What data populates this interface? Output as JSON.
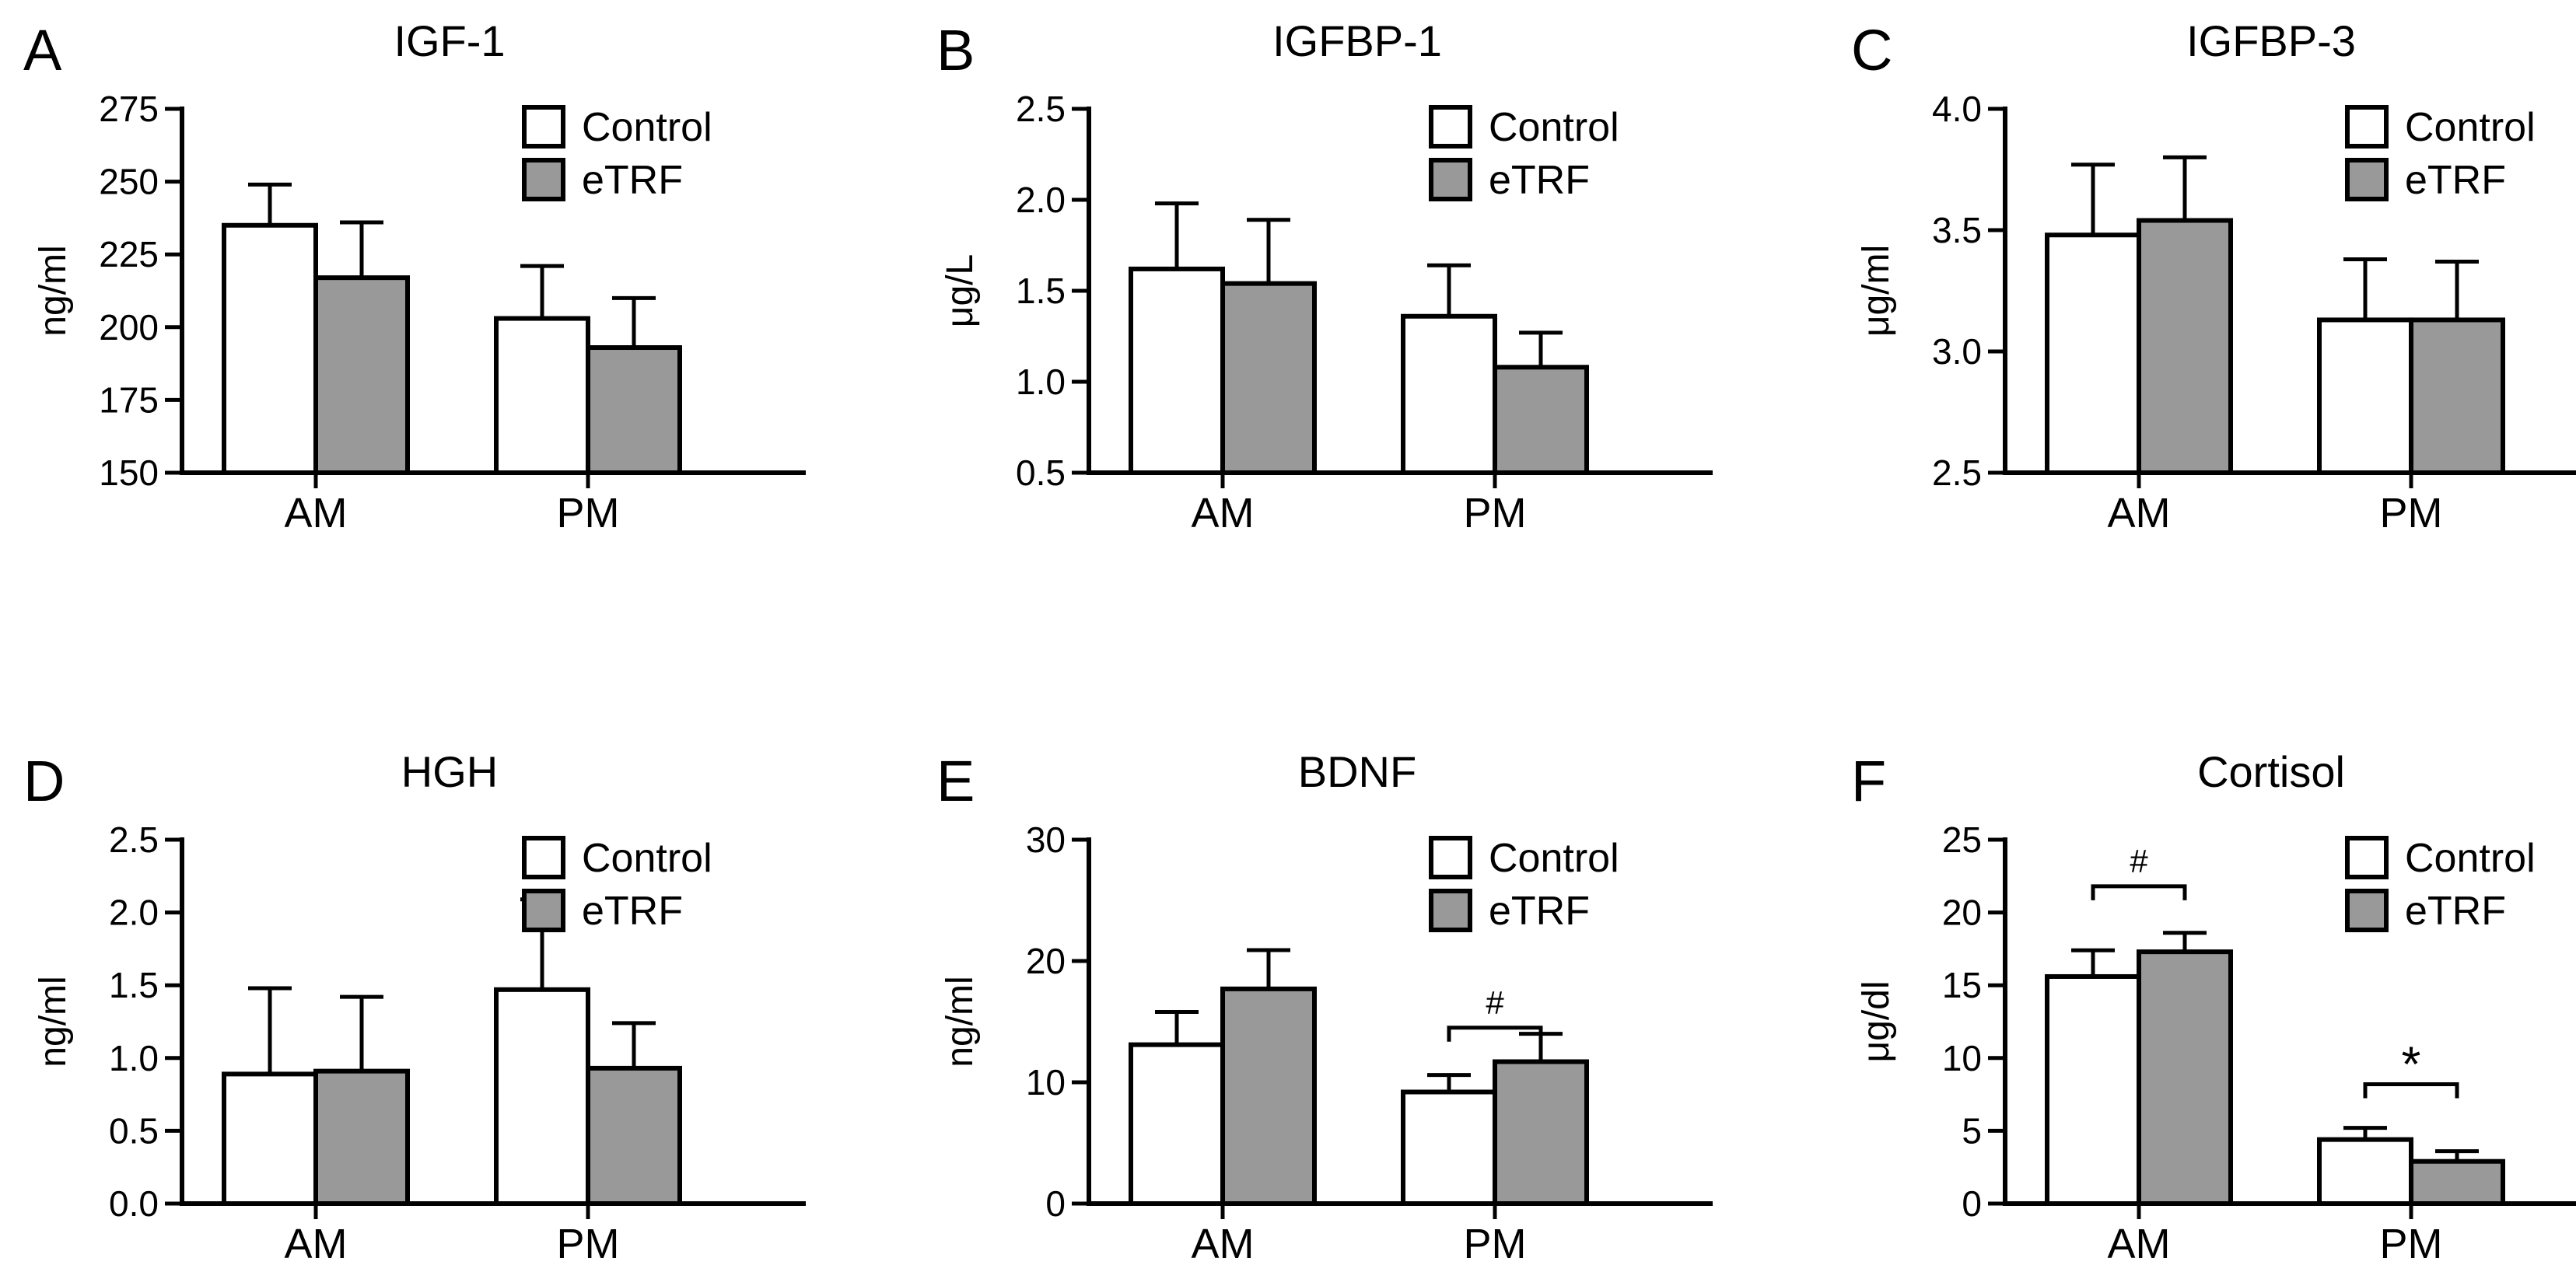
{
  "legend": {
    "control": "Control",
    "etrf": "eTRF"
  },
  "colors": {
    "control": "#ffffff",
    "etrf": "#999999",
    "stroke": "#000000"
  },
  "chart_data": [
    {
      "panel": "A",
      "title": "IGF-1",
      "type": "bar",
      "ylabel": "ng/ml",
      "ylim": [
        150,
        275
      ],
      "yticks": [
        150,
        175,
        200,
        225,
        250,
        275
      ],
      "ytick_labels": [
        "150",
        "175",
        "200",
        "225",
        "250",
        "275"
      ],
      "categories": [
        "AM",
        "PM"
      ],
      "series": [
        {
          "name": "Control",
          "values": [
            235,
            203
          ],
          "errors": [
            14,
            18
          ]
        },
        {
          "name": "eTRF",
          "values": [
            217,
            193
          ],
          "errors": [
            19,
            17
          ]
        }
      ],
      "brackets": []
    },
    {
      "panel": "B",
      "title": "IGFBP-1",
      "type": "bar",
      "ylabel": "μg/L",
      "ylim": [
        0.5,
        2.5
      ],
      "yticks": [
        0.5,
        1.0,
        1.5,
        2.0,
        2.5
      ],
      "ytick_labels": [
        "0.5",
        "1.0",
        "1.5",
        "2.0",
        "2.5"
      ],
      "categories": [
        "AM",
        "PM"
      ],
      "series": [
        {
          "name": "Control",
          "values": [
            1.62,
            1.36
          ],
          "errors": [
            0.36,
            0.28
          ]
        },
        {
          "name": "eTRF",
          "values": [
            1.54,
            1.08
          ],
          "errors": [
            0.35,
            0.19
          ]
        }
      ],
      "brackets": []
    },
    {
      "panel": "C",
      "title": "IGFBP-3",
      "type": "bar",
      "ylabel": "μg/ml",
      "ylim": [
        2.5,
        4.0
      ],
      "yticks": [
        2.5,
        3.0,
        3.5,
        4.0
      ],
      "ytick_labels": [
        "2.5",
        "3.0",
        "3.5",
        "4.0"
      ],
      "categories": [
        "AM",
        "PM"
      ],
      "series": [
        {
          "name": "Control",
          "values": [
            3.48,
            3.13
          ],
          "errors": [
            0.29,
            0.25
          ]
        },
        {
          "name": "eTRF",
          "values": [
            3.54,
            3.13
          ],
          "errors": [
            0.26,
            0.24
          ]
        }
      ],
      "brackets": []
    },
    {
      "panel": "D",
      "title": "HGH",
      "type": "bar",
      "ylabel": "ng/ml",
      "ylim": [
        0.0,
        2.5
      ],
      "yticks": [
        0.0,
        0.5,
        1.0,
        1.5,
        2.0,
        2.5
      ],
      "ytick_labels": [
        "0.0",
        "0.5",
        "1.0",
        "1.5",
        "2.0",
        "2.5"
      ],
      "categories": [
        "AM",
        "PM"
      ],
      "series": [
        {
          "name": "Control",
          "values": [
            0.89,
            1.47
          ],
          "errors": [
            0.59,
            0.62
          ]
        },
        {
          "name": "eTRF",
          "values": [
            0.91,
            0.93
          ],
          "errors": [
            0.51,
            0.31
          ]
        }
      ],
      "brackets": []
    },
    {
      "panel": "E",
      "title": "BDNF",
      "type": "bar",
      "ylabel": "ng/ml",
      "ylim": [
        0,
        30
      ],
      "yticks": [
        0,
        10,
        20,
        30
      ],
      "ytick_labels": [
        "0",
        "10",
        "20",
        "30"
      ],
      "categories": [
        "AM",
        "PM"
      ],
      "series": [
        {
          "name": "Control",
          "values": [
            13.1,
            9.2
          ],
          "errors": [
            2.7,
            1.4
          ]
        },
        {
          "name": "eTRF",
          "values": [
            17.7,
            11.7
          ],
          "errors": [
            3.2,
            2.3
          ]
        }
      ],
      "brackets": [
        {
          "category": 1,
          "label": "#",
          "at": 14.5
        }
      ]
    },
    {
      "panel": "F",
      "title": "Cortisol",
      "type": "bar",
      "ylabel": "μg/dl",
      "ylim": [
        0,
        25
      ],
      "yticks": [
        0,
        5,
        10,
        15,
        20,
        25
      ],
      "ytick_labels": [
        "0",
        "5",
        "10",
        "15",
        "20",
        "25"
      ],
      "categories": [
        "AM",
        "PM"
      ],
      "series": [
        {
          "name": "Control",
          "values": [
            15.6,
            4.4
          ],
          "errors": [
            1.8,
            0.8
          ]
        },
        {
          "name": "eTRF",
          "values": [
            17.3,
            2.9
          ],
          "errors": [
            1.3,
            0.7
          ]
        }
      ],
      "brackets": [
        {
          "category": 0,
          "label": "#",
          "at": 21.8
        },
        {
          "category": 1,
          "label": "*",
          "at": 8.2
        }
      ]
    }
  ]
}
